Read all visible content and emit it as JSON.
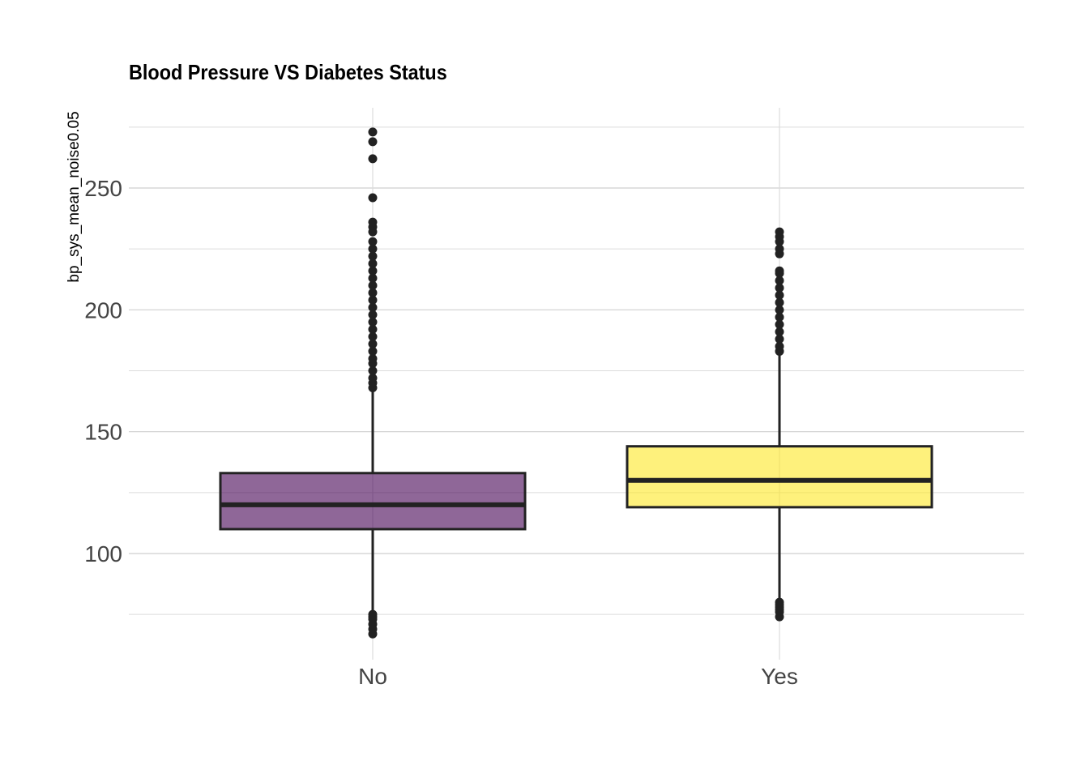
{
  "chart_data": {
    "type": "boxplot",
    "title": "Blood Pressure VS Diabetes Status",
    "xlabel": "",
    "ylabel": "bp_sys_mean_noise0.05",
    "ylim": [
      60,
      282
    ],
    "yticks": [
      100,
      150,
      200,
      250
    ],
    "grid": true,
    "legend": "none",
    "categories": [
      "No",
      "Yes"
    ],
    "series": [
      {
        "category": "No",
        "color": "#440154",
        "q1": 110,
        "median": 120,
        "q3": 133,
        "whisker_low": 75,
        "whisker_high": 168,
        "outliers": [
          67,
          69,
          71,
          73,
          74,
          75,
          168,
          170,
          172,
          175,
          178,
          180,
          183,
          186,
          189,
          192,
          195,
          198,
          201,
          204,
          207,
          210,
          213,
          216,
          219,
          222,
          225,
          228,
          232,
          234,
          236,
          246,
          262,
          269,
          273
        ]
      },
      {
        "category": "Yes",
        "color": "#FDE725",
        "q1": 119,
        "median": 130,
        "q3": 144,
        "whisker_low": 80,
        "whisker_high": 183,
        "outliers": [
          74,
          76,
          77,
          78,
          79,
          80,
          183,
          185,
          188,
          191,
          194,
          197,
          200,
          203,
          206,
          209,
          212,
          215,
          216,
          223,
          225,
          228,
          230,
          232
        ]
      }
    ]
  }
}
